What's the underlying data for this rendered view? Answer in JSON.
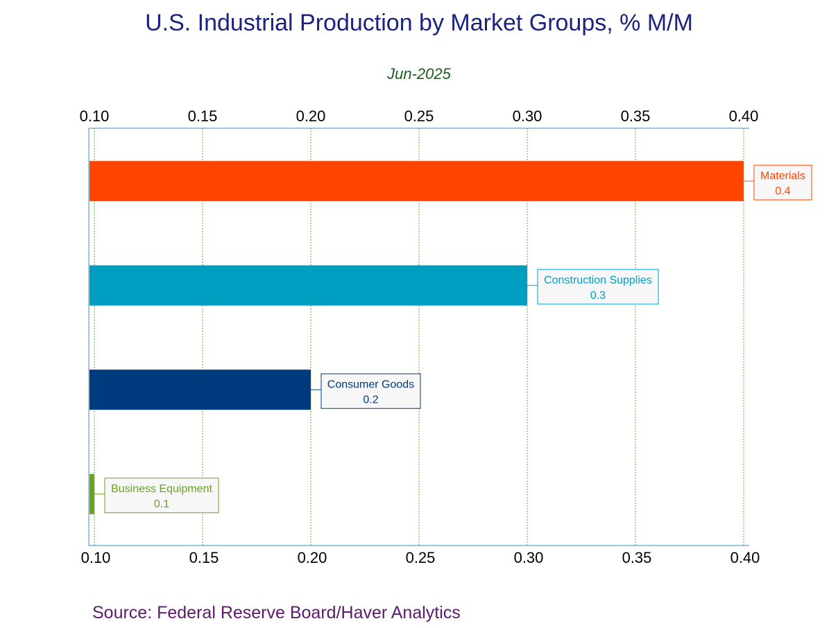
{
  "chart_data": {
    "type": "bar",
    "orientation": "horizontal",
    "title": "U.S. Industrial Production by Market Groups, % M/M",
    "subtitle": "Jun-2025",
    "categories": [
      "Materials",
      "Construction Supplies",
      "Consumer Goods",
      "Business Equipment"
    ],
    "values": [
      0.4,
      0.3,
      0.2,
      0.1
    ],
    "value_labels": [
      "0.4",
      "0.3",
      "0.2",
      "0.1"
    ],
    "colors": [
      "#ff4500",
      "#009fc2",
      "#003a7e",
      "#6aa121"
    ],
    "xlim": [
      0.1,
      0.4
    ],
    "xticks": [
      0.1,
      0.15,
      0.2,
      0.25,
      0.3,
      0.35,
      0.4
    ],
    "xtick_labels": [
      "0.10",
      "0.15",
      "0.20",
      "0.25",
      "0.30",
      "0.35",
      "0.40"
    ],
    "grid": true,
    "grid_color": "#6aa121",
    "axis_color": "#3a8fb7",
    "xlabel": "",
    "ylabel": "",
    "source": "Source:  Federal Reserve Board/Haver Analytics"
  }
}
